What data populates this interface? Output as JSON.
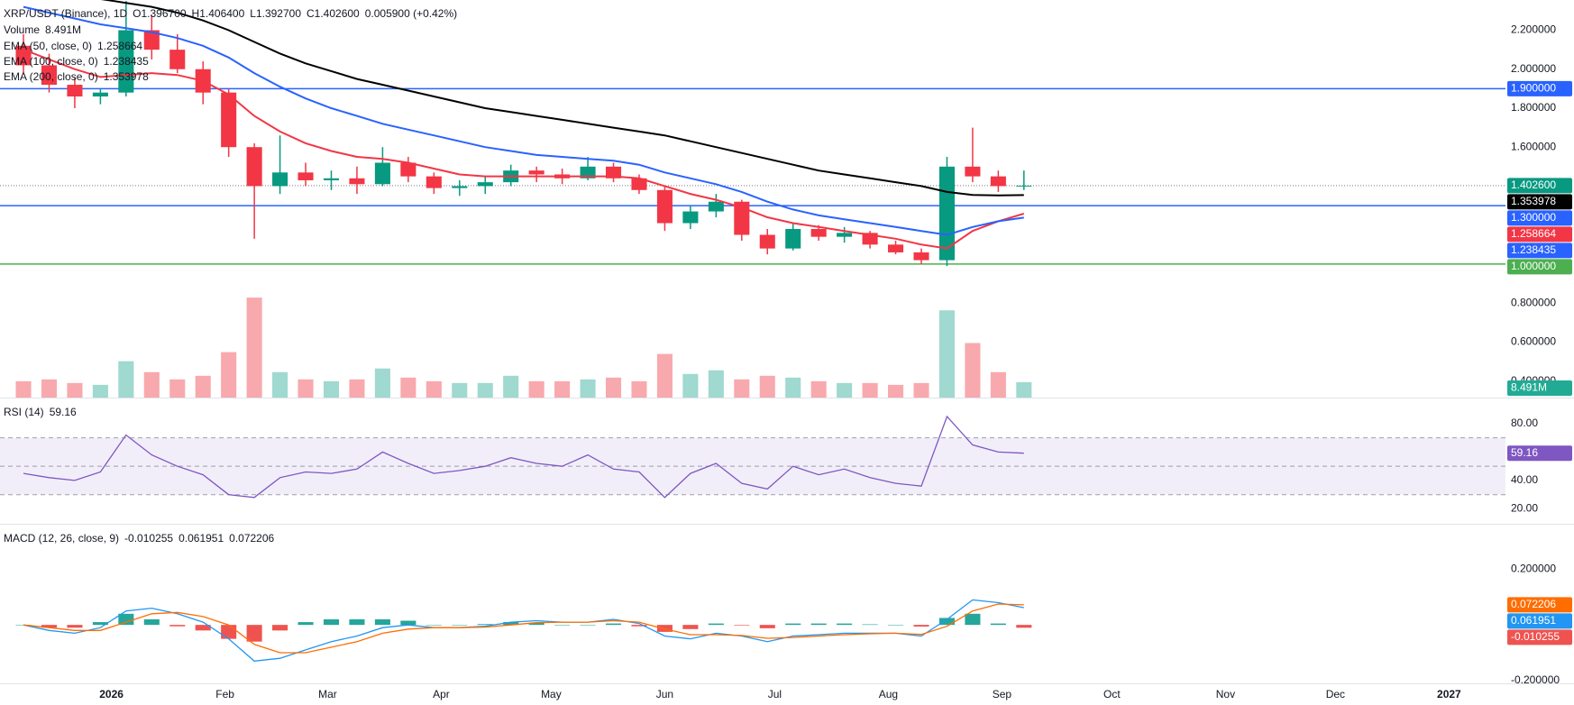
{
  "chart_data": [
    {
      "type": "candlestick",
      "title": "XRP/USDT (Binance), 1D",
      "quote": [
        {
          "value": 1.3967,
          "label": "O1.396700"
        },
        {
          "value": 1.4064,
          "label": "H1.406400"
        },
        {
          "value": 1.3927,
          "label": "L1.392700"
        },
        {
          "value": 1.4026,
          "label": "C1.402600"
        },
        {
          "value": 0.0059,
          "label": "0.005900 (+0.42%)"
        }
      ],
      "x": [
        -24,
        -17,
        -10,
        -3,
        4,
        11,
        18,
        25,
        32,
        39,
        46,
        53,
        60,
        67,
        74,
        81,
        88,
        95,
        102,
        109,
        116,
        123,
        130,
        137,
        144,
        151,
        158,
        165,
        172,
        179,
        186,
        193,
        200,
        207,
        214,
        221,
        228,
        235,
        242,
        249
      ],
      "open": [
        2.12,
        2.02,
        1.92,
        1.86,
        1.88,
        2.2,
        2.1,
        2.0,
        1.88,
        1.6,
        1.4,
        1.47,
        1.43,
        1.44,
        1.41,
        1.52,
        1.45,
        1.39,
        1.4,
        1.42,
        1.48,
        1.46,
        1.44,
        1.5,
        1.44,
        1.38,
        1.21,
        1.27,
        1.32,
        1.15,
        1.08,
        1.18,
        1.14,
        1.16,
        1.1,
        1.06,
        1.02,
        1.5,
        1.45,
        1.4
      ],
      "high": [
        2.18,
        2.08,
        1.96,
        1.9,
        2.35,
        2.28,
        2.18,
        2.04,
        1.9,
        1.62,
        1.66,
        1.52,
        1.48,
        1.5,
        1.6,
        1.55,
        1.47,
        1.43,
        1.45,
        1.51,
        1.5,
        1.49,
        1.55,
        1.52,
        1.46,
        1.4,
        1.3,
        1.36,
        1.33,
        1.18,
        1.21,
        1.2,
        1.19,
        1.17,
        1.12,
        1.08,
        1.55,
        1.7,
        1.48,
        1.48
      ],
      "low": [
        1.98,
        1.88,
        1.8,
        1.82,
        1.86,
        2.05,
        1.98,
        1.82,
        1.55,
        1.13,
        1.36,
        1.4,
        1.38,
        1.36,
        1.4,
        1.42,
        1.36,
        1.35,
        1.36,
        1.4,
        1.42,
        1.41,
        1.43,
        1.42,
        1.36,
        1.17,
        1.18,
        1.24,
        1.12,
        1.05,
        1.07,
        1.12,
        1.11,
        1.08,
        1.05,
        1.0,
        0.99,
        1.42,
        1.37,
        1.38
      ],
      "close": [
        2.02,
        1.92,
        1.86,
        1.88,
        2.2,
        2.1,
        2.0,
        1.88,
        1.6,
        1.4,
        1.47,
        1.43,
        1.44,
        1.41,
        1.52,
        1.45,
        1.39,
        1.4,
        1.42,
        1.48,
        1.46,
        1.44,
        1.5,
        1.44,
        1.38,
        1.21,
        1.27,
        1.32,
        1.15,
        1.08,
        1.18,
        1.14,
        1.16,
        1.1,
        1.06,
        1.02,
        1.5,
        1.45,
        1.4,
        1.4026
      ],
      "up_color": "#089981",
      "down_color": "#f23645",
      "last_price": {
        "value": 1.4026,
        "label": "1.402600"
      },
      "series": [
        {
          "name": "EMA (50, close, 0)",
          "color": "#f23645",
          "last": 1.258664,
          "values": [
            2.1,
            2.05,
            2.0,
            1.96,
            1.97,
            1.98,
            1.97,
            1.94,
            1.87,
            1.76,
            1.68,
            1.62,
            1.58,
            1.55,
            1.54,
            1.52,
            1.49,
            1.46,
            1.45,
            1.45,
            1.45,
            1.45,
            1.45,
            1.45,
            1.44,
            1.4,
            1.36,
            1.33,
            1.29,
            1.24,
            1.21,
            1.19,
            1.17,
            1.15,
            1.13,
            1.1,
            1.08,
            1.17,
            1.22,
            1.258664
          ]
        },
        {
          "name": "EMA (100, close, 0)",
          "color": "#2962ff",
          "last": 1.238435,
          "values": [
            2.32,
            2.29,
            2.26,
            2.23,
            2.21,
            2.19,
            2.16,
            2.12,
            2.06,
            1.98,
            1.91,
            1.85,
            1.8,
            1.76,
            1.72,
            1.69,
            1.66,
            1.63,
            1.6,
            1.58,
            1.56,
            1.55,
            1.54,
            1.53,
            1.51,
            1.47,
            1.44,
            1.41,
            1.37,
            1.32,
            1.28,
            1.25,
            1.23,
            1.21,
            1.19,
            1.17,
            1.15,
            1.19,
            1.22,
            1.238435
          ]
        },
        {
          "name": "EMA (200, close, 0)",
          "color": "#000000",
          "last": 1.353978,
          "values": [
            2.42,
            2.4,
            2.38,
            2.36,
            2.34,
            2.32,
            2.29,
            2.25,
            2.2,
            2.14,
            2.08,
            2.03,
            1.99,
            1.95,
            1.92,
            1.89,
            1.86,
            1.83,
            1.8,
            1.78,
            1.76,
            1.74,
            1.72,
            1.7,
            1.68,
            1.66,
            1.63,
            1.6,
            1.57,
            1.54,
            1.51,
            1.48,
            1.46,
            1.44,
            1.42,
            1.4,
            1.37,
            1.355,
            1.352,
            1.353978
          ]
        }
      ],
      "volume": {
        "name": "Volume",
        "last": {
          "value": 8.491,
          "label": "8.491M"
        },
        "ylim": [
          0,
          60
        ],
        "up_color": "#9fd9cf",
        "down_color": "#f8a9ad",
        "label_color": "#22ab94",
        "values": [
          9,
          10,
          8,
          7,
          20,
          14,
          10,
          12,
          25,
          55,
          14,
          10,
          9,
          10,
          16,
          11,
          9,
          8,
          8,
          12,
          9,
          9,
          10,
          11,
          9,
          24,
          13,
          15,
          10,
          12,
          11,
          9,
          8,
          8,
          7,
          8,
          48,
          30,
          14,
          8.491
        ]
      },
      "hlines": [
        {
          "value": 1.9,
          "label": "1.900000",
          "color": "#2962ff"
        },
        {
          "value": 1.3,
          "label": "1.300000",
          "color": "#2962ff"
        },
        {
          "value": 1.0,
          "label": "1.000000",
          "color": "#4caf50"
        }
      ],
      "xlim": [
        -30.4,
        380.4
      ],
      "ylim": [
        0.315,
        2.355
      ],
      "yticks": [
        {
          "value": 0.4,
          "label": "0.400000"
        },
        {
          "value": 0.6,
          "label": "0.600000"
        },
        {
          "value": 0.8,
          "label": "0.800000"
        },
        {
          "value": 1.6,
          "label": "1.600000"
        },
        {
          "value": 1.8,
          "label": "1.800000"
        },
        {
          "value": 2.0,
          "label": "2.000000"
        },
        {
          "value": 2.2,
          "label": "2.200000"
        }
      ]
    },
    {
      "type": "line",
      "title": "RSI (14)",
      "x": [
        -24,
        -17,
        -10,
        -3,
        4,
        11,
        18,
        25,
        32,
        39,
        46,
        53,
        60,
        67,
        74,
        81,
        88,
        95,
        102,
        109,
        116,
        123,
        130,
        137,
        144,
        151,
        158,
        165,
        172,
        179,
        186,
        193,
        200,
        207,
        214,
        221,
        228,
        235,
        242,
        249
      ],
      "values": [
        45,
        42,
        40,
        46,
        72,
        58,
        50,
        44,
        30,
        28,
        42,
        46,
        45,
        48,
        60,
        52,
        45,
        47,
        50,
        56,
        52,
        50,
        58,
        48,
        46,
        28,
        45,
        52,
        38,
        34,
        50,
        44,
        48,
        42,
        38,
        36,
        85,
        65,
        60,
        59.16
      ],
      "last": 59.16,
      "color": "#7e57c2",
      "bands": [
        30,
        50,
        70
      ],
      "xlim": [
        -30.4,
        380.4
      ],
      "ylim": [
        9.5,
        97.7
      ],
      "yticks": [
        {
          "value": 20,
          "label": "20.00"
        },
        {
          "value": 40,
          "label": "40.00"
        },
        {
          "value": 80,
          "label": "80.00"
        }
      ]
    },
    {
      "type": "macd",
      "title": "MACD (12, 26, close, 9)",
      "x": [
        -24,
        -17,
        -10,
        -3,
        4,
        11,
        18,
        25,
        32,
        39,
        46,
        53,
        60,
        67,
        74,
        81,
        88,
        95,
        102,
        109,
        116,
        123,
        130,
        137,
        144,
        151,
        158,
        165,
        172,
        179,
        186,
        193,
        200,
        207,
        214,
        221,
        228,
        235,
        242,
        249
      ],
      "histogram": {
        "last": -0.010255,
        "up_color": "#26a69a",
        "down_color": "#ef5350",
        "values": [
          0,
          -0.01,
          -0.01,
          0.01,
          0.04,
          0.02,
          -0.005,
          -0.02,
          -0.05,
          -0.06,
          -0.02,
          0.01,
          0.02,
          0.02,
          0.02,
          0.015,
          0,
          0,
          0.003,
          0.01,
          0.007,
          0,
          0,
          0.005,
          -0.005,
          -0.025,
          -0.015,
          0.005,
          -0.002,
          -0.012,
          0.005,
          0.005,
          0.005,
          0.002,
          0,
          -0.006,
          0.025,
          0.04,
          0.005,
          -0.010255
        ]
      },
      "series": [
        {
          "color": "#2196f3",
          "last": 0.061951,
          "values": [
            0,
            -0.02,
            -0.03,
            -0.01,
            0.05,
            0.06,
            0.04,
            0.01,
            -0.05,
            -0.13,
            -0.12,
            -0.09,
            -0.06,
            -0.04,
            -0.01,
            0,
            -0.01,
            -0.01,
            -0.005,
            0.01,
            0.015,
            0.01,
            0.01,
            0.02,
            0.005,
            -0.04,
            -0.05,
            -0.03,
            -0.04,
            -0.06,
            -0.04,
            -0.035,
            -0.03,
            -0.03,
            -0.03,
            -0.04,
            0.02,
            0.09,
            0.08,
            0.061951
          ]
        },
        {
          "color": "#ff6d00",
          "last": 0.072206,
          "values": [
            0,
            -0.01,
            -0.02,
            -0.02,
            0.01,
            0.04,
            0.045,
            0.03,
            0,
            -0.07,
            -0.1,
            -0.1,
            -0.08,
            -0.06,
            -0.03,
            -0.015,
            -0.01,
            -0.01,
            -0.008,
            0,
            0.008,
            0.01,
            0.01,
            0.015,
            0.01,
            -0.015,
            -0.035,
            -0.035,
            -0.038,
            -0.048,
            -0.045,
            -0.04,
            -0.035,
            -0.032,
            -0.03,
            -0.034,
            -0.005,
            0.05,
            0.075,
            0.072206
          ]
        }
      ],
      "xlim": [
        -30.4,
        380.4
      ],
      "ylim": [
        -0.21,
        0.36
      ],
      "yticks": [
        {
          "value": -0.2,
          "label": "-0.200000"
        },
        {
          "value": 0.2,
          "label": "0.200000"
        }
      ],
      "xticks": [
        {
          "value": 0,
          "label": "2026"
        },
        {
          "value": 31,
          "label": "Feb"
        },
        {
          "value": 59,
          "label": "Mar"
        },
        {
          "value": 90,
          "label": "Apr"
        },
        {
          "value": 120,
          "label": "May"
        },
        {
          "value": 151,
          "label": "Jun"
        },
        {
          "value": 181,
          "label": "Jul"
        },
        {
          "value": 212,
          "label": "Aug"
        },
        {
          "value": 243,
          "label": "Sep"
        },
        {
          "value": 273,
          "label": "Oct"
        },
        {
          "value": 304,
          "label": "Nov"
        },
        {
          "value": 334,
          "label": "Dec"
        },
        {
          "value": 365,
          "label": "2027"
        }
      ]
    }
  ]
}
